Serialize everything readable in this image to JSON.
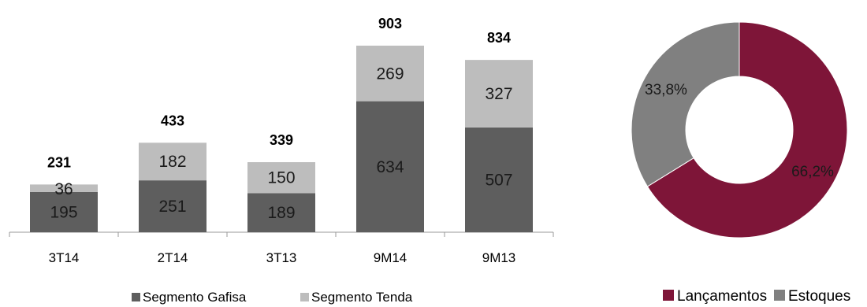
{
  "chart_data": [
    {
      "type": "bar",
      "stacked": true,
      "categories": [
        "3T14",
        "2T14",
        "3T13",
        "9M14",
        "9M13"
      ],
      "series": [
        {
          "name": "Segmento Gafisa",
          "values": [
            195,
            251,
            189,
            634,
            507
          ],
          "color": "#5e5e5e"
        },
        {
          "name": "Segmento Tenda",
          "values": [
            36,
            182,
            150,
            269,
            327
          ],
          "color": "#bdbdbd"
        }
      ],
      "totals": [
        "231",
        "433",
        "339",
        "903",
        "834"
      ],
      "value_labels": [
        [
          "195",
          "251",
          "189",
          "634",
          "507"
        ],
        [
          "36",
          "182",
          "150",
          "269",
          "327"
        ]
      ],
      "ylim": [
        0,
        903
      ],
      "grid": false,
      "legend_position": "bottom"
    },
    {
      "type": "pie",
      "donut": true,
      "slices": [
        {
          "name": "Lançamentos",
          "value": 66.2,
          "label": "66,2%",
          "color": "#7e1538"
        },
        {
          "name": "Estoques",
          "value": 33.8,
          "label": "33,8%",
          "color": "#808080"
        }
      ],
      "legend_position": "bottom"
    }
  ]
}
